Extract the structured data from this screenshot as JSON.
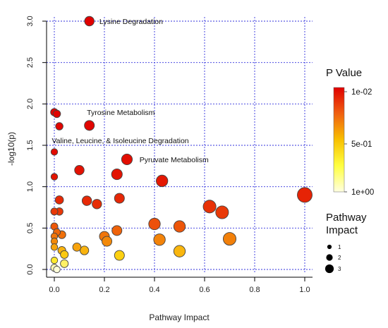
{
  "chart_data": {
    "type": "scatter",
    "xlabel": "Pathway Impact",
    "ylabel": "-log10(p)",
    "xlim": [
      0,
      1.0
    ],
    "ylim": [
      0,
      3.0
    ],
    "x_ticks": [
      "0.0",
      "0.2",
      "0.4",
      "0.6",
      "0.8",
      "1.0"
    ],
    "y_ticks": [
      "0.0",
      "0.5",
      "1.0",
      "1.5",
      "2.0",
      "2.5",
      "3.0"
    ],
    "grid": true,
    "points": [
      {
        "x": 0.14,
        "y": 3.0,
        "size": 1.5,
        "p": 0.001
      },
      {
        "x": 0.0,
        "y": 1.9,
        "size": 1.0,
        "p": 0.0126
      },
      {
        "x": 0.01,
        "y": 1.88,
        "size": 1.0,
        "p": 0.0132
      },
      {
        "x": 0.02,
        "y": 1.73,
        "size": 1.0,
        "p": 0.0186
      },
      {
        "x": 0.14,
        "y": 1.74,
        "size": 1.6,
        "p": 0.0182
      },
      {
        "x": 0.0,
        "y": 1.42,
        "size": 0.8,
        "p": 0.038
      },
      {
        "x": 0.29,
        "y": 1.33,
        "size": 1.8,
        "p": 0.047
      },
      {
        "x": 0.1,
        "y": 1.2,
        "size": 1.5,
        "p": 0.063
      },
      {
        "x": 0.0,
        "y": 1.12,
        "size": 0.8,
        "p": 0.076
      },
      {
        "x": 0.25,
        "y": 1.15,
        "size": 1.8,
        "p": 0.071
      },
      {
        "x": 0.43,
        "y": 1.07,
        "size": 2.0,
        "p": 0.085
      },
      {
        "x": 1.0,
        "y": 0.9,
        "size": 2.8,
        "p": 0.126
      },
      {
        "x": 0.02,
        "y": 0.84,
        "size": 1.2,
        "p": 0.145
      },
      {
        "x": 0.13,
        "y": 0.83,
        "size": 1.5,
        "p": 0.148
      },
      {
        "x": 0.17,
        "y": 0.79,
        "size": 1.5,
        "p": 0.162
      },
      {
        "x": 0.26,
        "y": 0.86,
        "size": 1.6,
        "p": 0.138
      },
      {
        "x": 0.0,
        "y": 0.7,
        "size": 0.9,
        "p": 0.2
      },
      {
        "x": 0.02,
        "y": 0.7,
        "size": 1.0,
        "p": 0.2
      },
      {
        "x": 0.62,
        "y": 0.76,
        "size": 2.3,
        "p": 0.174
      },
      {
        "x": 0.67,
        "y": 0.69,
        "size": 2.3,
        "p": 0.204
      },
      {
        "x": 0.0,
        "y": 0.52,
        "size": 0.9,
        "p": 0.3
      },
      {
        "x": 0.01,
        "y": 0.45,
        "size": 0.9,
        "p": 0.355
      },
      {
        "x": 0.03,
        "y": 0.42,
        "size": 1.1,
        "p": 0.38
      },
      {
        "x": 0.25,
        "y": 0.47,
        "size": 1.6,
        "p": 0.34
      },
      {
        "x": 0.4,
        "y": 0.55,
        "size": 2.0,
        "p": 0.28
      },
      {
        "x": 0.5,
        "y": 0.52,
        "size": 2.0,
        "p": 0.3
      },
      {
        "x": 0.0,
        "y": 0.4,
        "size": 0.8,
        "p": 0.4
      },
      {
        "x": 0.0,
        "y": 0.34,
        "size": 0.8,
        "p": 0.46
      },
      {
        "x": 0.0,
        "y": 0.27,
        "size": 0.8,
        "p": 0.54
      },
      {
        "x": 0.2,
        "y": 0.4,
        "size": 1.6,
        "p": 0.4
      },
      {
        "x": 0.21,
        "y": 0.34,
        "size": 1.6,
        "p": 0.46
      },
      {
        "x": 0.42,
        "y": 0.36,
        "size": 2.0,
        "p": 0.44
      },
      {
        "x": 0.7,
        "y": 0.37,
        "size": 2.3,
        "p": 0.43
      },
      {
        "x": 0.09,
        "y": 0.27,
        "size": 1.2,
        "p": 0.54
      },
      {
        "x": 0.12,
        "y": 0.23,
        "size": 1.3,
        "p": 0.59
      },
      {
        "x": 0.03,
        "y": 0.23,
        "size": 1.1,
        "p": 0.59
      },
      {
        "x": 0.04,
        "y": 0.18,
        "size": 1.1,
        "p": 0.66
      },
      {
        "x": 0.26,
        "y": 0.17,
        "size": 1.6,
        "p": 0.68
      },
      {
        "x": 0.5,
        "y": 0.22,
        "size": 2.0,
        "p": 0.6
      },
      {
        "x": 0.0,
        "y": 0.11,
        "size": 0.8,
        "p": 0.78
      },
      {
        "x": 0.04,
        "y": 0.07,
        "size": 1.1,
        "p": 0.85
      },
      {
        "x": 0.0,
        "y": 0.02,
        "size": 0.9,
        "p": 0.95
      },
      {
        "x": 0.01,
        "y": 0.0,
        "size": 0.8,
        "p": 0.99
      }
    ],
    "annotations": [
      {
        "text": "Lysine Degradation",
        "x": 0.18,
        "y": 3.0
      },
      {
        "text": "Tyrosine Metabolism",
        "x": 0.13,
        "y": 1.9
      },
      {
        "text": "Valine, Leucine, & Isoleucine Degradation",
        "x": -0.01,
        "y": 1.56
      },
      {
        "text": "Pyruvate Metabolism",
        "x": 0.34,
        "y": 1.33
      }
    ],
    "colorbar": {
      "title": "P Value",
      "labels": [
        "1e-02",
        "5e-01",
        "1e+00"
      ],
      "colors": [
        "#e00000",
        "#f06010",
        "#f8c000",
        "#ffff40",
        "#ffffe0"
      ]
    },
    "size_legend": {
      "title_line1": "Pathway",
      "title_line2": "Impact",
      "entries": [
        {
          "label": "1",
          "size": 1
        },
        {
          "label": "2",
          "size": 2
        },
        {
          "label": "3",
          "size": 3
        }
      ]
    }
  }
}
